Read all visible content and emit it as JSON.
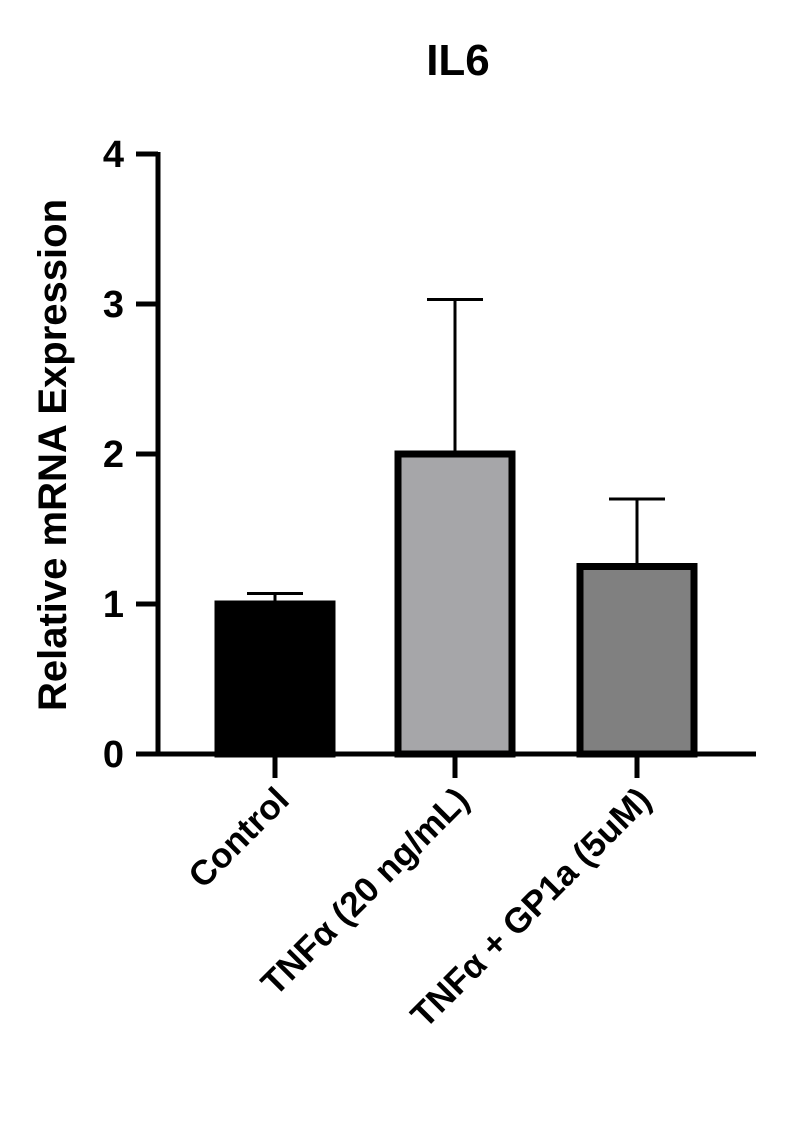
{
  "chart_data": {
    "type": "bar",
    "title": "IL6",
    "ylabel": "Relative mRNA Expression",
    "xlabel": "",
    "ylim": [
      0,
      4
    ],
    "yticks": [
      "0",
      "1",
      "2",
      "3",
      "4"
    ],
    "categories": [
      "Control",
      "TNFα (20 ng/mL)",
      "TNFα + GP1a (5uM)"
    ],
    "values": [
      1.0,
      2.0,
      1.25
    ],
    "error": [
      0.07,
      1.03,
      0.45
    ],
    "colors": [
      "#000000",
      "#a6a6a9",
      "#808080"
    ],
    "grid": false,
    "legend": "none"
  }
}
